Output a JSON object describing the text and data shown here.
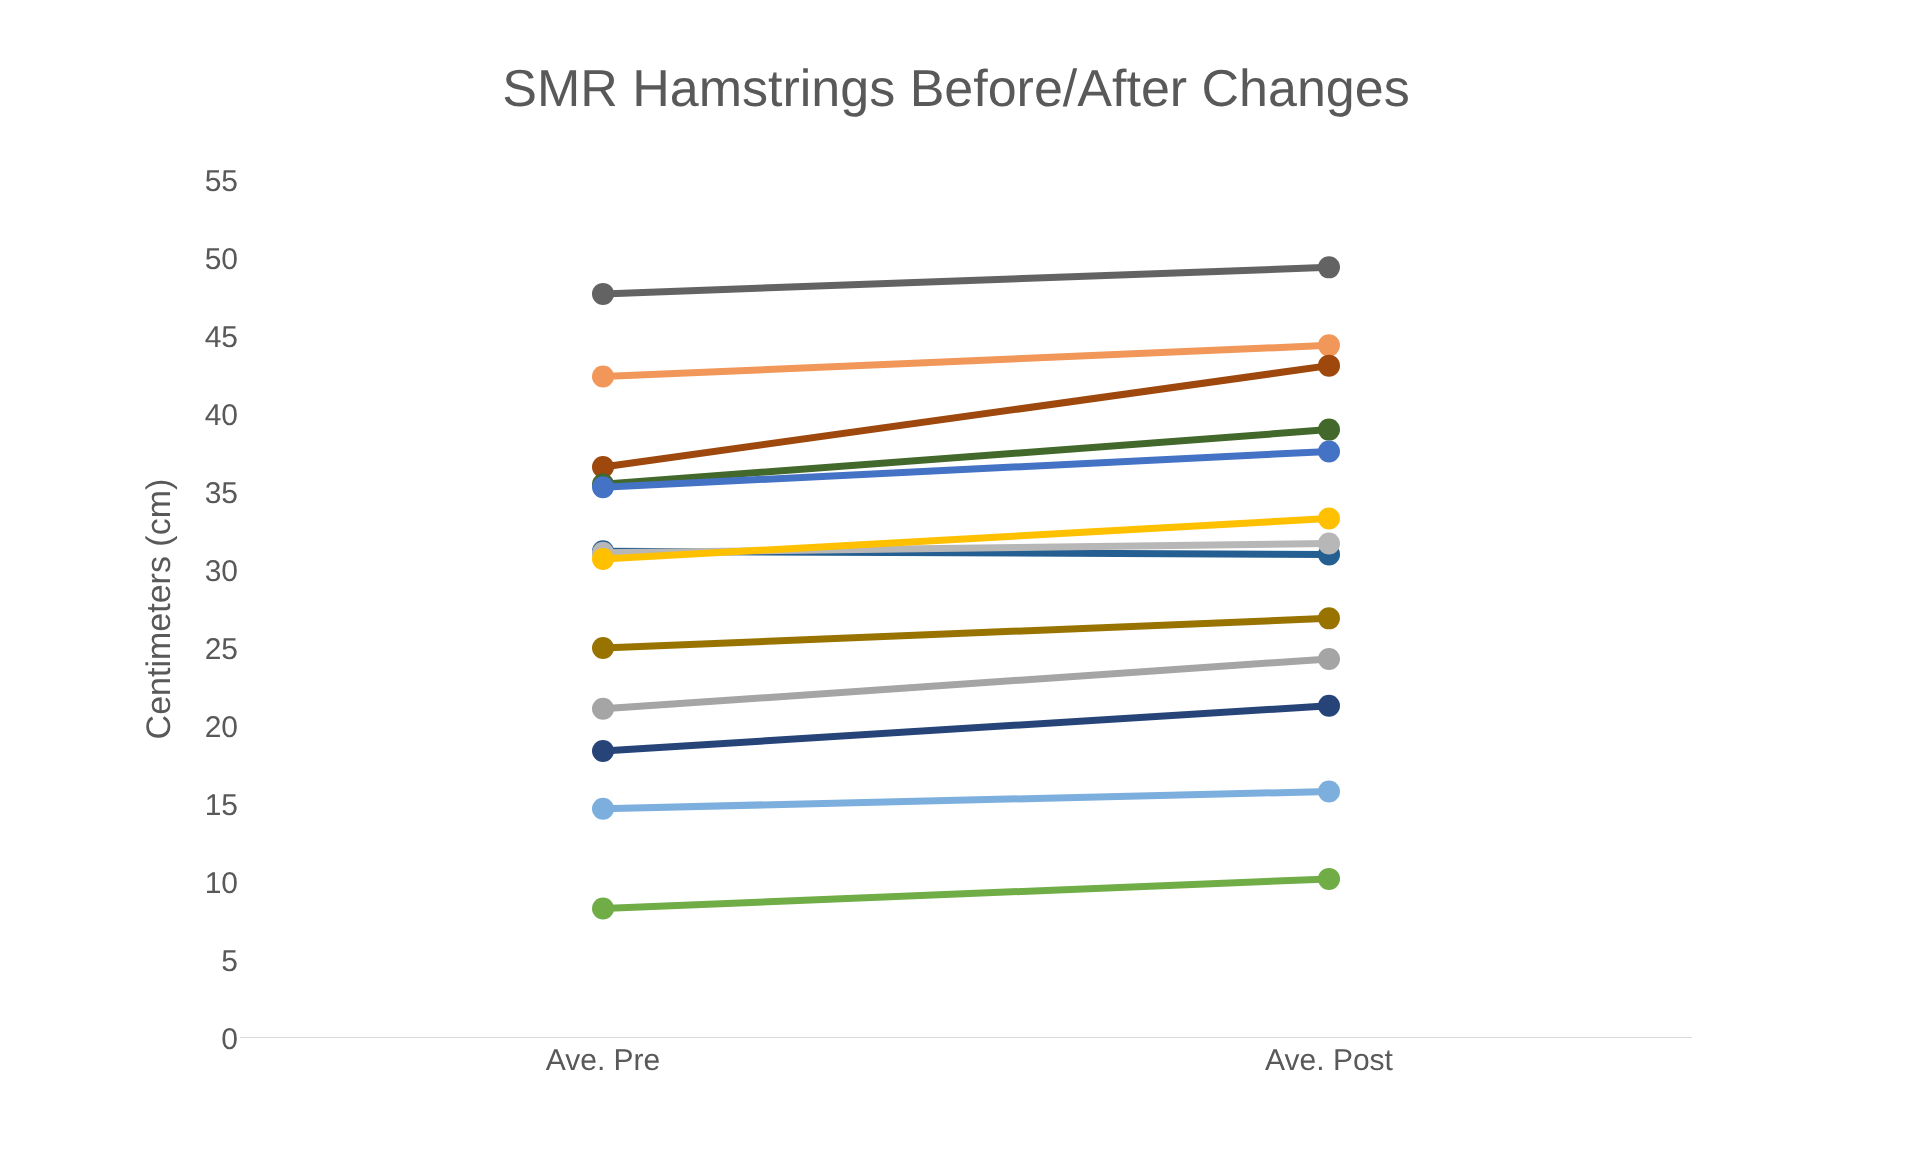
{
  "chart_data": {
    "type": "line",
    "title": "SMR Hamstrings Before/After Changes",
    "ylabel": "Centimeters (cm)",
    "categories": [
      "Ave. Pre",
      "Ave. Post"
    ],
    "ylim": [
      0,
      55
    ],
    "yticks": [
      0,
      5,
      10,
      15,
      20,
      25,
      30,
      35,
      40,
      45,
      50,
      55
    ],
    "grid": false,
    "marker": "circle",
    "line_style": "solid",
    "series": [
      {
        "color": "#636363",
        "values": [
          47.7,
          49.4
        ]
      },
      {
        "color": "#f1975a",
        "values": [
          42.4,
          44.4
        ]
      },
      {
        "color": "#9e480e",
        "values": [
          36.6,
          43.1
        ]
      },
      {
        "color": "#43682b",
        "values": [
          35.5,
          39.0
        ]
      },
      {
        "color": "#4472c4",
        "values": [
          35.3,
          37.6
        ]
      },
      {
        "color": "#255e91",
        "values": [
          31.2,
          31.0
        ]
      },
      {
        "color": "#b7b7b7",
        "values": [
          31.1,
          31.7
        ]
      },
      {
        "color": "#ffc000",
        "values": [
          30.7,
          33.3
        ]
      },
      {
        "color": "#997300",
        "values": [
          25.0,
          26.9
        ]
      },
      {
        "color": "#a5a5a5",
        "values": [
          21.1,
          24.3
        ]
      },
      {
        "color": "#264478",
        "values": [
          18.4,
          21.3
        ]
      },
      {
        "color": "#7cafdd",
        "values": [
          14.7,
          15.8
        ]
      },
      {
        "color": "#70ad47",
        "values": [
          8.3,
          10.2
        ]
      }
    ]
  }
}
